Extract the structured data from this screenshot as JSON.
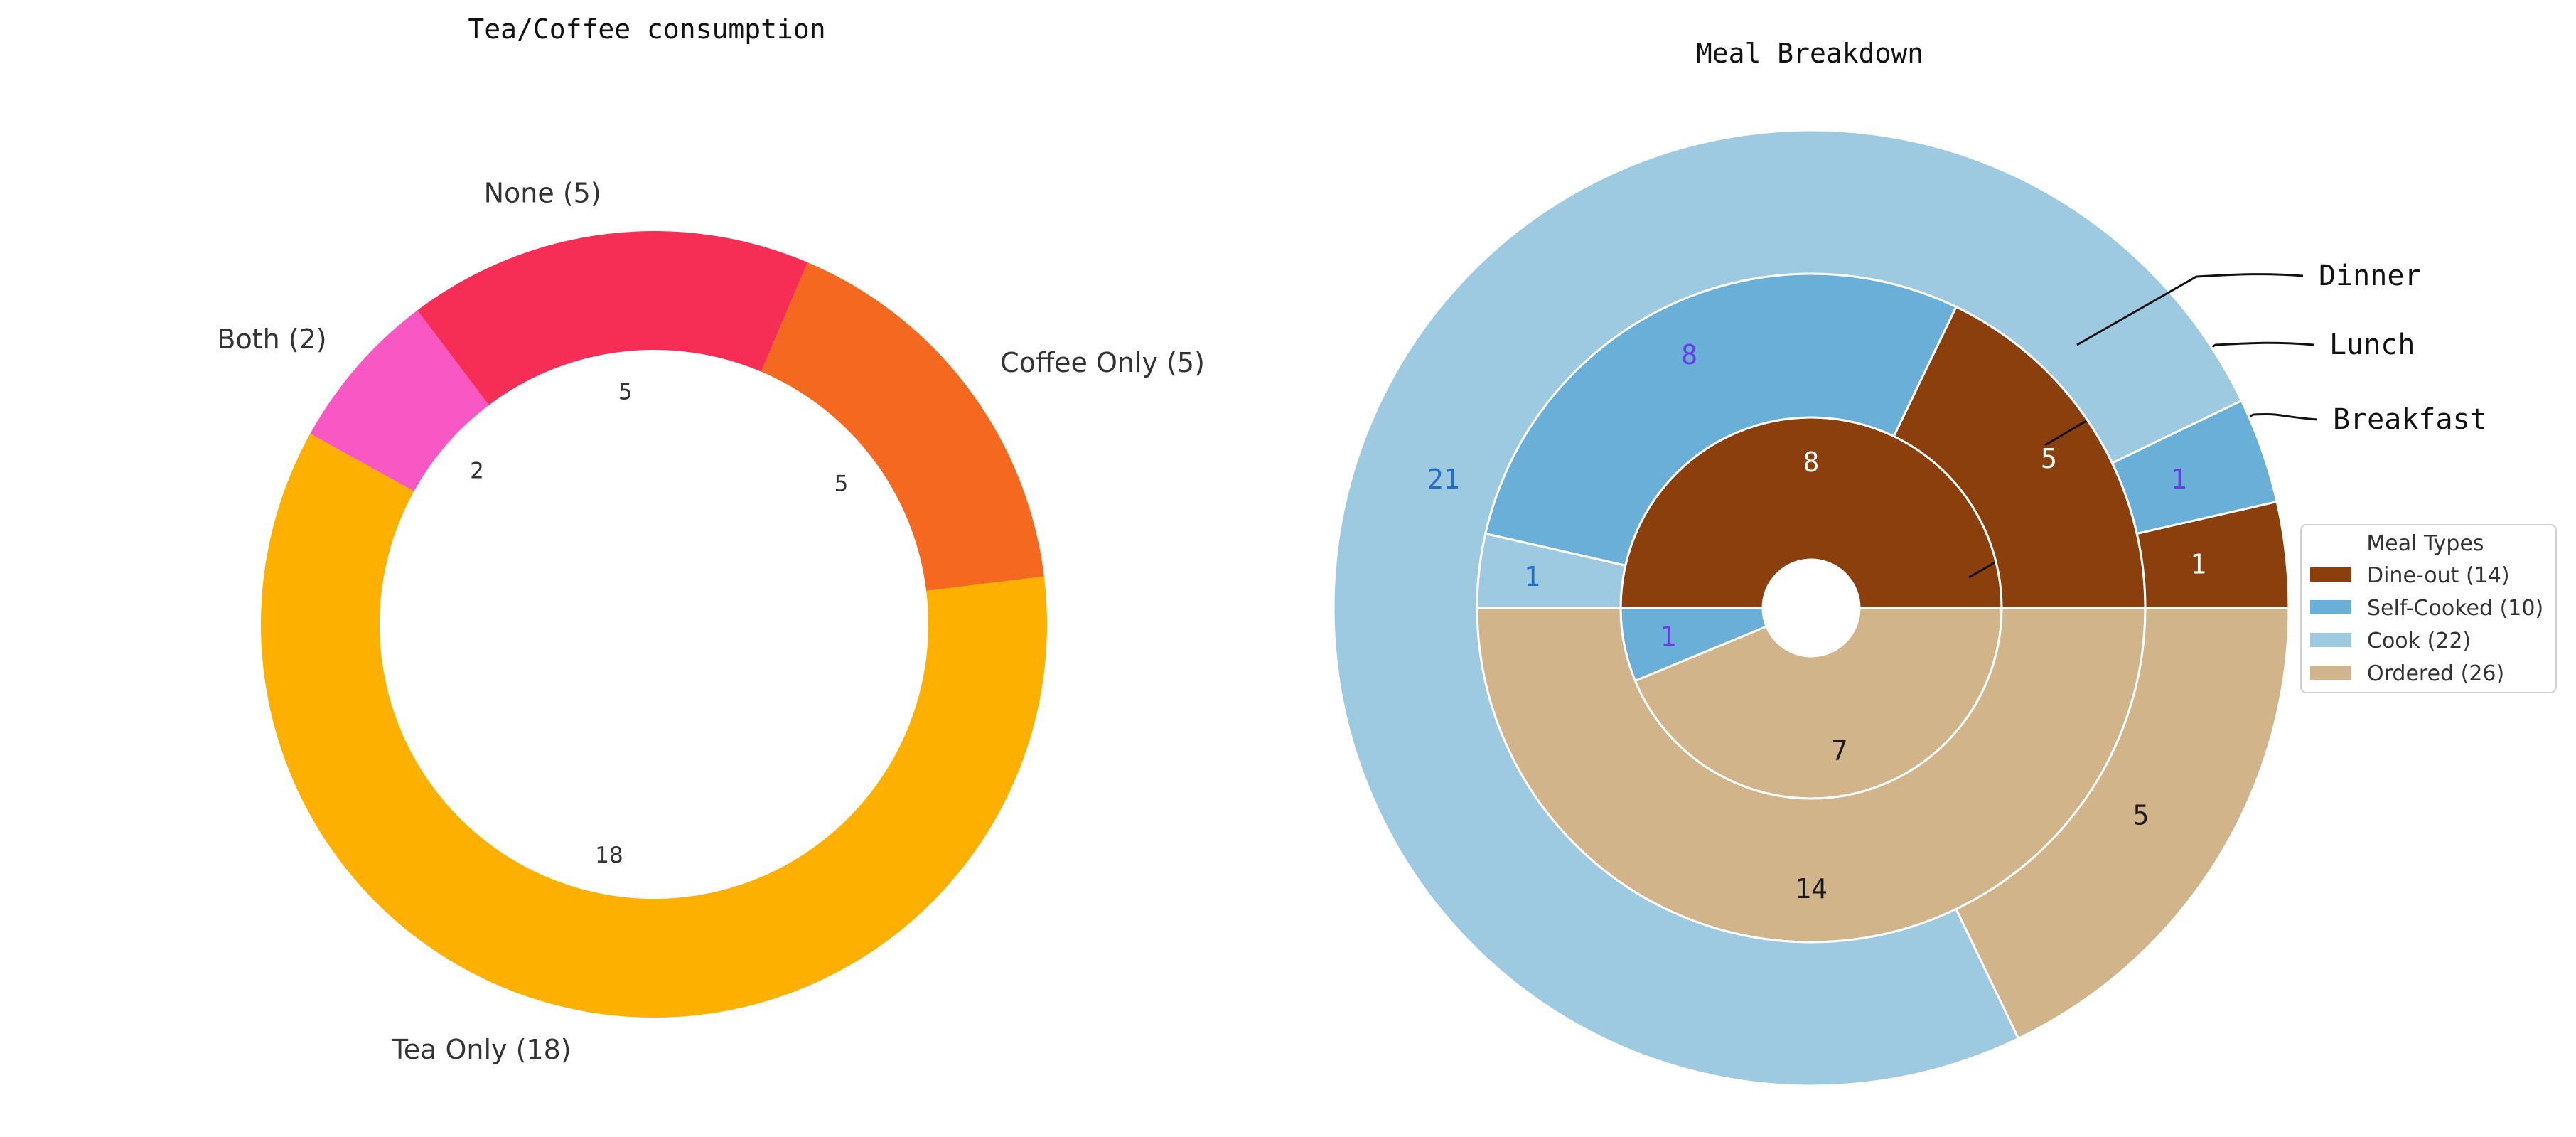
{
  "chart_data": [
    {
      "type": "pie",
      "variant": "donut",
      "title": "Tea/Coffee consumption",
      "start_angle_deg": 127,
      "direction": "counterclockwise",
      "slices": [
        {
          "label": "Both (2)",
          "value": 2,
          "color": "#f957c4"
        },
        {
          "label": "Tea Only (18)",
          "value": 18,
          "color": "#fdb000"
        },
        {
          "label": "Coffee Only (5)",
          "value": 5,
          "color": "#f5681f"
        },
        {
          "label": "None (5)",
          "value": 5,
          "color": "#f62e55"
        }
      ]
    },
    {
      "type": "pie",
      "variant": "nested-donut",
      "title": "Meal Breakdown",
      "start_angle_deg": 0,
      "direction": "counterclockwise",
      "legend": {
        "title": "Meal Types",
        "position": "right",
        "items": [
          {
            "label": "Dine-out (14)",
            "color": "#8b3f0c"
          },
          {
            "label": "Self-Cooked (10)",
            "color": "#6aafd8"
          },
          {
            "label": "Cook (22)",
            "color": "#9ecae1"
          },
          {
            "label": "Ordered (26)",
            "color": "#d2b48b"
          }
        ]
      },
      "rings": [
        {
          "name": "Breakfast",
          "slices": [
            {
              "category": "Dine-out",
              "value": 8,
              "label": "8",
              "label_color": "#ffffff"
            },
            {
              "category": "Self-Cooked",
              "value": 1,
              "label": "1",
              "label_color": "#6a3de8"
            },
            {
              "category": "Ordered",
              "value": 7,
              "label": "7",
              "label_color": "#1a1a1a"
            }
          ]
        },
        {
          "name": "Lunch",
          "slices": [
            {
              "category": "Dine-out",
              "value": 5,
              "label": "5",
              "label_color": "#ffffff"
            },
            {
              "category": "Self-Cooked",
              "value": 8,
              "label": "8",
              "label_color": "#6a3de8"
            },
            {
              "category": "Cook",
              "value": 1,
              "label": "1",
              "label_color": "#1f6fd1"
            },
            {
              "category": "Ordered",
              "value": 14,
              "label": "14",
              "label_color": "#1a1a1a"
            }
          ]
        },
        {
          "name": "Dinner",
          "slices": [
            {
              "category": "Dine-out",
              "value": 1,
              "label": "1",
              "label_color": "#ffffff"
            },
            {
              "category": "Self-Cooked",
              "value": 1,
              "label": "1",
              "label_color": "#6a3de8"
            },
            {
              "category": "Cook",
              "value": 21,
              "label": "21",
              "label_color": "#1f6fd1"
            },
            {
              "category": "Ordered",
              "value": 5,
              "label": "5",
              "label_color": "#1a1a1a"
            }
          ]
        }
      ]
    }
  ]
}
